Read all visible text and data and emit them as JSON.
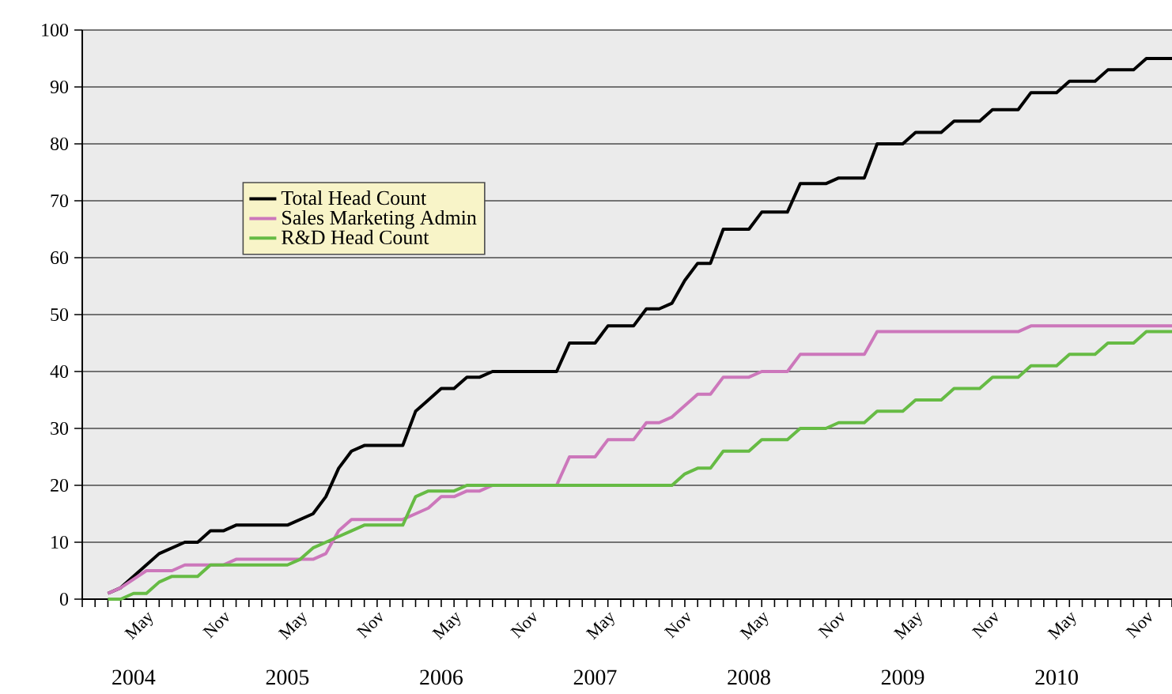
{
  "chart_data": {
    "type": "line",
    "xlim": [
      "2003-12",
      "2011-01"
    ],
    "ylim": [
      0,
      100
    ],
    "yticks": [
      0,
      10,
      20,
      30,
      40,
      50,
      60,
      70,
      80,
      90,
      100
    ],
    "xticks": [
      {
        "value": "2003-12",
        "label": null
      },
      {
        "value": "2004-01",
        "label": null
      },
      {
        "value": "2004-02",
        "label": null
      },
      {
        "value": "2004-03",
        "label": null
      },
      {
        "value": "2004-04",
        "label": null
      },
      {
        "value": "2004-05",
        "label": "May"
      },
      {
        "value": "2004-06",
        "label": null
      },
      {
        "value": "2004-07",
        "label": null
      },
      {
        "value": "2004-08",
        "label": null
      },
      {
        "value": "2004-09",
        "label": null
      },
      {
        "value": "2004-10",
        "label": null
      },
      {
        "value": "2004-11",
        "label": "Nov"
      },
      {
        "value": "2004-12",
        "label": null
      },
      {
        "value": "2005-01",
        "label": null
      },
      {
        "value": "2005-02",
        "label": null
      },
      {
        "value": "2005-03",
        "label": null
      },
      {
        "value": "2005-04",
        "label": null
      },
      {
        "value": "2005-05",
        "label": "May"
      },
      {
        "value": "2005-06",
        "label": null
      },
      {
        "value": "2005-07",
        "label": null
      },
      {
        "value": "2005-08",
        "label": null
      },
      {
        "value": "2005-09",
        "label": null
      },
      {
        "value": "2005-10",
        "label": null
      },
      {
        "value": "2005-11",
        "label": "Nov"
      },
      {
        "value": "2005-12",
        "label": null
      },
      {
        "value": "2006-01",
        "label": null
      },
      {
        "value": "2006-02",
        "label": null
      },
      {
        "value": "2006-03",
        "label": null
      },
      {
        "value": "2006-04",
        "label": null
      },
      {
        "value": "2006-05",
        "label": "May"
      },
      {
        "value": "2006-06",
        "label": null
      },
      {
        "value": "2006-07",
        "label": null
      },
      {
        "value": "2006-08",
        "label": null
      },
      {
        "value": "2006-09",
        "label": null
      },
      {
        "value": "2006-10",
        "label": null
      },
      {
        "value": "2006-11",
        "label": "Nov"
      },
      {
        "value": "2006-12",
        "label": null
      },
      {
        "value": "2007-01",
        "label": null
      },
      {
        "value": "2007-02",
        "label": null
      },
      {
        "value": "2007-03",
        "label": null
      },
      {
        "value": "2007-04",
        "label": null
      },
      {
        "value": "2007-05",
        "label": "May"
      },
      {
        "value": "2007-06",
        "label": null
      },
      {
        "value": "2007-07",
        "label": null
      },
      {
        "value": "2007-08",
        "label": null
      },
      {
        "value": "2007-09",
        "label": null
      },
      {
        "value": "2007-10",
        "label": null
      },
      {
        "value": "2007-11",
        "label": "Nov"
      },
      {
        "value": "2007-12",
        "label": null
      },
      {
        "value": "2008-01",
        "label": null
      },
      {
        "value": "2008-02",
        "label": null
      },
      {
        "value": "2008-03",
        "label": null
      },
      {
        "value": "2008-04",
        "label": null
      },
      {
        "value": "2008-05",
        "label": "May"
      },
      {
        "value": "2008-06",
        "label": null
      },
      {
        "value": "2008-07",
        "label": null
      },
      {
        "value": "2008-08",
        "label": null
      },
      {
        "value": "2008-09",
        "label": null
      },
      {
        "value": "2008-10",
        "label": null
      },
      {
        "value": "2008-11",
        "label": "Nov"
      },
      {
        "value": "2008-12",
        "label": null
      },
      {
        "value": "2009-01",
        "label": null
      },
      {
        "value": "2009-02",
        "label": null
      },
      {
        "value": "2009-03",
        "label": null
      },
      {
        "value": "2009-04",
        "label": null
      },
      {
        "value": "2009-05",
        "label": "May"
      },
      {
        "value": "2009-06",
        "label": null
      },
      {
        "value": "2009-07",
        "label": null
      },
      {
        "value": "2009-08",
        "label": null
      },
      {
        "value": "2009-09",
        "label": null
      },
      {
        "value": "2009-10",
        "label": null
      },
      {
        "value": "2009-11",
        "label": "Nov"
      },
      {
        "value": "2009-12",
        "label": null
      },
      {
        "value": "2010-01",
        "label": null
      },
      {
        "value": "2010-02",
        "label": null
      },
      {
        "value": "2010-03",
        "label": null
      },
      {
        "value": "2010-04",
        "label": null
      },
      {
        "value": "2010-05",
        "label": "May"
      },
      {
        "value": "2010-06",
        "label": null
      },
      {
        "value": "2010-07",
        "label": null
      },
      {
        "value": "2010-08",
        "label": null
      },
      {
        "value": "2010-09",
        "label": null
      },
      {
        "value": "2010-10",
        "label": null
      },
      {
        "value": "2010-11",
        "label": "Nov"
      },
      {
        "value": "2010-12",
        "label": null
      },
      {
        "value": "2011-01",
        "label": null
      }
    ],
    "grid": "y",
    "legend": "top left",
    "annotations": [
      "2004",
      "2005",
      "2006",
      "2007",
      "2008",
      "2009",
      "2010"
    ],
    "series": [
      {
        "name": "Total Head Count",
        "color": "#000000",
        "x": [
          "2004-02",
          "2004-03",
          "2004-04",
          "2004-05",
          "2004-06",
          "2004-07",
          "2004-08",
          "2004-09",
          "2004-10",
          "2004-11",
          "2004-12",
          "2005-04",
          "2005-05",
          "2005-06",
          "2005-07",
          "2005-08",
          "2005-09",
          "2005-10",
          "2006-01",
          "2006-02",
          "2006-03",
          "2006-04",
          "2006-05",
          "2006-06",
          "2006-07",
          "2006-08",
          "2007-01",
          "2007-02",
          "2007-04",
          "2007-05",
          "2007-07",
          "2007-08",
          "2007-09",
          "2007-10",
          "2007-11",
          "2007-12",
          "2008-01",
          "2008-02",
          "2008-04",
          "2008-05",
          "2008-07",
          "2008-08",
          "2008-10",
          "2008-11",
          "2009-01",
          "2009-02",
          "2009-04",
          "2009-05",
          "2009-07",
          "2009-08",
          "2009-10",
          "2009-11",
          "2010-01",
          "2010-02",
          "2010-04",
          "2010-05",
          "2010-07",
          "2010-08",
          "2010-10",
          "2010-11",
          "2011-01"
        ],
        "values": [
          1,
          2,
          4,
          6,
          8,
          9,
          10,
          10,
          12,
          12,
          13,
          13,
          14,
          15,
          18,
          23,
          26,
          27,
          27,
          33,
          35,
          37,
          37,
          39,
          39,
          40,
          40,
          45,
          45,
          48,
          48,
          51,
          51,
          52,
          56,
          59,
          59,
          65,
          65,
          68,
          68,
          73,
          73,
          74,
          74,
          80,
          80,
          82,
          82,
          84,
          84,
          86,
          86,
          89,
          89,
          91,
          91,
          93,
          93,
          95,
          95
        ]
      },
      {
        "name": "Sales Marketing Admin",
        "color": "#cc77bb",
        "x": [
          "2004-02",
          "2004-03",
          "2004-05",
          "2004-07",
          "2004-08",
          "2004-11",
          "2004-12",
          "2005-06",
          "2005-07",
          "2005-08",
          "2005-09",
          "2006-01",
          "2006-02",
          "2006-03",
          "2006-04",
          "2006-05",
          "2006-06",
          "2006-07",
          "2006-08",
          "2007-01",
          "2007-02",
          "2007-04",
          "2007-05",
          "2007-07",
          "2007-08",
          "2007-09",
          "2007-10",
          "2007-12",
          "2008-01",
          "2008-02",
          "2008-04",
          "2008-05",
          "2008-07",
          "2008-08",
          "2009-01",
          "2009-02",
          "2010-01",
          "2010-02",
          "2011-01"
        ],
        "values": [
          1,
          2,
          5,
          5,
          6,
          6,
          7,
          7,
          8,
          12,
          14,
          14,
          15,
          16,
          18,
          18,
          19,
          19,
          20,
          20,
          25,
          25,
          28,
          28,
          31,
          31,
          32,
          36,
          36,
          39,
          39,
          40,
          40,
          43,
          43,
          47,
          47,
          48,
          48
        ]
      },
      {
        "name": "R&D Head Count",
        "color": "#66bb44",
        "x": [
          "2004-02",
          "2004-03",
          "2004-04",
          "2004-05",
          "2004-06",
          "2004-07",
          "2004-09",
          "2004-10",
          "2005-04",
          "2005-05",
          "2005-06",
          "2005-07",
          "2005-08",
          "2005-09",
          "2005-10",
          "2006-01",
          "2006-02",
          "2006-03",
          "2006-05",
          "2006-06",
          "2007-10",
          "2007-11",
          "2007-12",
          "2008-01",
          "2008-02",
          "2008-04",
          "2008-05",
          "2008-07",
          "2008-08",
          "2008-10",
          "2008-11",
          "2009-01",
          "2009-02",
          "2009-04",
          "2009-05",
          "2009-07",
          "2009-08",
          "2009-10",
          "2009-11",
          "2010-01",
          "2010-02",
          "2010-04",
          "2010-05",
          "2010-07",
          "2010-08",
          "2010-10",
          "2010-11",
          "2011-01"
        ],
        "values": [
          0,
          0,
          1,
          1,
          3,
          4,
          4,
          6,
          6,
          7,
          9,
          10,
          11,
          12,
          13,
          13,
          18,
          19,
          19,
          20,
          20,
          22,
          23,
          23,
          26,
          26,
          28,
          28,
          30,
          30,
          31,
          31,
          33,
          33,
          35,
          35,
          37,
          37,
          39,
          39,
          41,
          41,
          43,
          43,
          45,
          45,
          47,
          47
        ]
      }
    ]
  }
}
